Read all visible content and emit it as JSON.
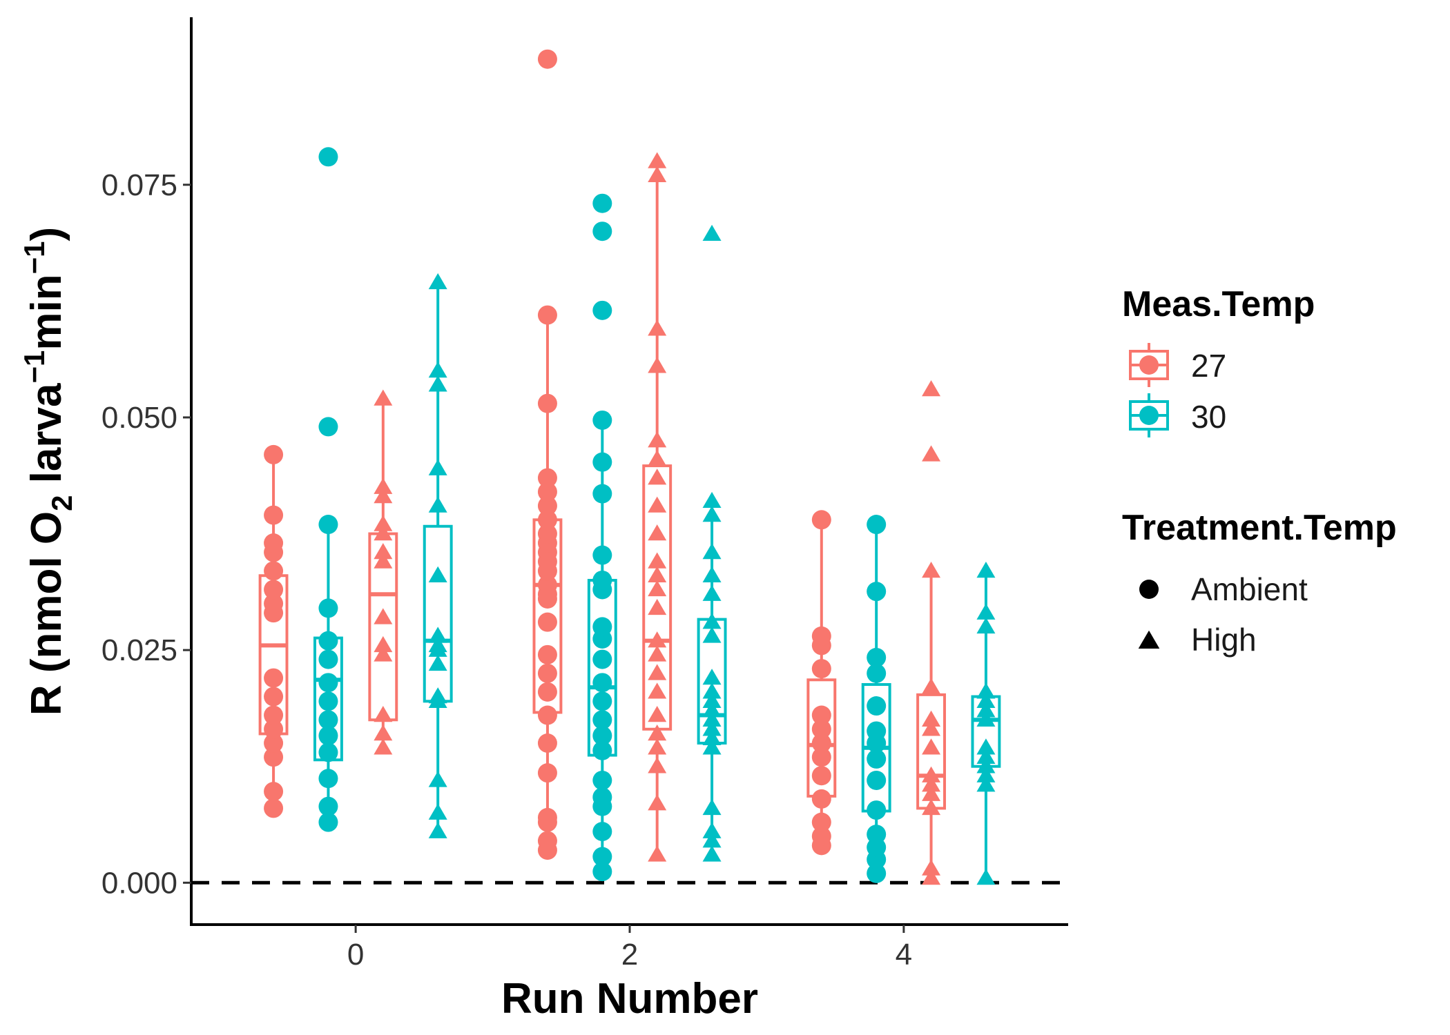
{
  "chart_data": {
    "type": "boxplot",
    "x_title": "Run Number",
    "y_title": {
      "prefix": "R (nmol O",
      "sub": "2",
      "mid1": " larva",
      "sup1": "−1",
      "mid2": "min",
      "sup2": "−1",
      "suffix": ")"
    },
    "x_ticks": [
      "0",
      "2",
      "4"
    ],
    "x_tick_values": [
      0,
      2,
      4
    ],
    "xlim": [
      -1.2,
      5.2
    ],
    "y_ticks": [
      "0.000",
      "0.025",
      "0.050",
      "0.075"
    ],
    "y_tick_values": [
      0,
      0.025,
      0.05,
      0.075
    ],
    "ylim": [
      -0.0045,
      0.093
    ],
    "reference_line": {
      "y": 0,
      "style": "dashed"
    },
    "legend_color": {
      "title": "Meas.Temp",
      "items": [
        {
          "label": "27",
          "color": "#F8766D"
        },
        {
          "label": "30",
          "color": "#00BFC4"
        }
      ]
    },
    "legend_shape": {
      "title": "Treatment.Temp",
      "items": [
        {
          "label": "Ambient",
          "shape": "circle"
        },
        {
          "label": "High",
          "shape": "triangle"
        }
      ]
    },
    "groups": [
      {
        "run": 0,
        "meas_temp": "27",
        "treatment": "Ambient",
        "offset": -0.6,
        "box": {
          "q1": 0.016,
          "median": 0.0255,
          "q3": 0.033,
          "whisker_low": 0.008,
          "whisker_high": 0.046
        },
        "points": [
          0.008,
          0.0098,
          0.0135,
          0.015,
          0.0165,
          0.018,
          0.02,
          0.022,
          0.029,
          0.03,
          0.0315,
          0.0335,
          0.0355,
          0.0365,
          0.0395,
          0.046
        ]
      },
      {
        "run": 0,
        "meas_temp": "30",
        "treatment": "Ambient",
        "offset": -0.2,
        "box": {
          "q1": 0.0132,
          "median": 0.0218,
          "q3": 0.0263,
          "whisker_low": 0.0065,
          "whisker_high": 0.0385
        },
        "points": [
          0.0065,
          0.0082,
          0.0112,
          0.014,
          0.0158,
          0.0175,
          0.0195,
          0.0215,
          0.024,
          0.026,
          0.0295,
          0.0385,
          0.049,
          0.078
        ]
      },
      {
        "run": 0,
        "meas_temp": "27",
        "treatment": "High",
        "offset": 0.2,
        "box": {
          "q1": 0.0175,
          "median": 0.031,
          "q3": 0.0375,
          "whisker_low": 0.0145,
          "whisker_high": 0.052
        },
        "points": [
          0.0145,
          0.016,
          0.018,
          0.0245,
          0.0255,
          0.0285,
          0.0345,
          0.0355,
          0.0375,
          0.0385,
          0.0415,
          0.0425,
          0.052
        ]
      },
      {
        "run": 0,
        "meas_temp": "30",
        "treatment": "High",
        "offset": 0.6,
        "box": {
          "q1": 0.0195,
          "median": 0.026,
          "q3": 0.0383,
          "whisker_low": 0.0055,
          "whisker_high": 0.0645
        },
        "points": [
          0.0055,
          0.0075,
          0.011,
          0.0195,
          0.02,
          0.0235,
          0.025,
          0.0255,
          0.0265,
          0.033,
          0.0405,
          0.0445,
          0.0535,
          0.055,
          0.0645
        ]
      },
      {
        "run": 2,
        "meas_temp": "27",
        "treatment": "Ambient",
        "offset": -0.6,
        "box": {
          "q1": 0.0183,
          "median": 0.032,
          "q3": 0.039,
          "whisker_low": 0.0035,
          "whisker_high": 0.061
        },
        "points": [
          0.0035,
          0.0045,
          0.0065,
          0.007,
          0.0118,
          0.015,
          0.018,
          0.0205,
          0.0225,
          0.0245,
          0.028,
          0.0305,
          0.031,
          0.032,
          0.0335,
          0.0345,
          0.0355,
          0.0365,
          0.0375,
          0.039,
          0.0405,
          0.042,
          0.0435,
          0.0515,
          0.061,
          0.0885
        ]
      },
      {
        "run": 2,
        "meas_temp": "30",
        "treatment": "Ambient",
        "offset": -0.2,
        "box": {
          "q1": 0.0137,
          "median": 0.021,
          "q3": 0.0325,
          "whisker_low": 0.0012,
          "whisker_high": 0.0497
        },
        "points": [
          0.0012,
          0.0028,
          0.0055,
          0.0082,
          0.0092,
          0.011,
          0.0142,
          0.0158,
          0.0175,
          0.0195,
          0.0215,
          0.024,
          0.0262,
          0.0275,
          0.0315,
          0.0325,
          0.0352,
          0.0418,
          0.0452,
          0.0497,
          0.0615,
          0.07,
          0.073
        ]
      },
      {
        "run": 2,
        "meas_temp": "27",
        "treatment": "High",
        "offset": 0.2,
        "box": {
          "q1": 0.0165,
          "median": 0.026,
          "q3": 0.0448,
          "whisker_low": 0.003,
          "whisker_high": 0.0775
        },
        "points": [
          0.003,
          0.0085,
          0.0125,
          0.0145,
          0.016,
          0.018,
          0.0205,
          0.0225,
          0.0245,
          0.026,
          0.0295,
          0.0315,
          0.033,
          0.0345,
          0.0375,
          0.0405,
          0.0435,
          0.0455,
          0.0475,
          0.0555,
          0.0595,
          0.076,
          0.0775
        ]
      },
      {
        "run": 2,
        "meas_temp": "30",
        "treatment": "High",
        "offset": 0.6,
        "box": {
          "q1": 0.015,
          "median": 0.018,
          "q3": 0.0283,
          "whisker_low": 0.003,
          "whisker_high": 0.041
        },
        "points": [
          0.003,
          0.0045,
          0.0055,
          0.008,
          0.0145,
          0.0155,
          0.0165,
          0.0175,
          0.0185,
          0.0195,
          0.0205,
          0.022,
          0.0265,
          0.028,
          0.031,
          0.033,
          0.0355,
          0.0395,
          0.041,
          0.0697
        ]
      },
      {
        "run": 4,
        "meas_temp": "27",
        "treatment": "Ambient",
        "offset": -0.6,
        "box": {
          "q1": 0.0093,
          "median": 0.0148,
          "q3": 0.0218,
          "whisker_low": 0.004,
          "whisker_high": 0.039
        },
        "points": [
          0.004,
          0.005,
          0.0065,
          0.009,
          0.0115,
          0.0135,
          0.015,
          0.0165,
          0.018,
          0.023,
          0.0255,
          0.0265,
          0.039
        ]
      },
      {
        "run": 4,
        "meas_temp": "30",
        "treatment": "Ambient",
        "offset": -0.2,
        "box": {
          "q1": 0.0077,
          "median": 0.0145,
          "q3": 0.0213,
          "whisker_low": 0.001,
          "whisker_high": 0.0385
        },
        "points": [
          0.001,
          0.0025,
          0.0038,
          0.0052,
          0.0078,
          0.011,
          0.0133,
          0.015,
          0.0163,
          0.019,
          0.0225,
          0.0242,
          0.0313,
          0.0385
        ]
      },
      {
        "run": 4,
        "meas_temp": "27",
        "treatment": "High",
        "offset": 0.2,
        "box": {
          "q1": 0.008,
          "median": 0.0115,
          "q3": 0.0202,
          "whisker_low": 0.0005,
          "whisker_high": 0.0335
        },
        "points": [
          0.0005,
          0.0015,
          0.008,
          0.0095,
          0.0105,
          0.0115,
          0.0145,
          0.0165,
          0.0175,
          0.021,
          0.0335,
          0.046,
          0.053
        ]
      },
      {
        "run": 4,
        "meas_temp": "30",
        "treatment": "High",
        "offset": 0.6,
        "box": {
          "q1": 0.0125,
          "median": 0.0175,
          "q3": 0.02,
          "whisker_low": 0.0005,
          "whisker_high": 0.0335
        },
        "points": [
          0.0005,
          0.0105,
          0.0115,
          0.0125,
          0.0135,
          0.0145,
          0.0175,
          0.0185,
          0.0195,
          0.0205,
          0.0275,
          0.029,
          0.0335
        ]
      }
    ]
  }
}
